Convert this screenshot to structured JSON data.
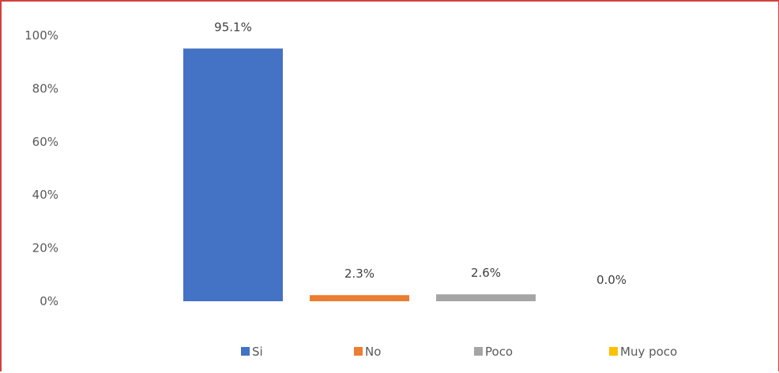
{
  "chart_data": {
    "type": "bar",
    "categories": [
      "Si",
      "No",
      "Poco",
      "Muy poco"
    ],
    "values": [
      95.1,
      2.3,
      2.6,
      0.0
    ],
    "data_labels": [
      "95.1%",
      "2.3%",
      "2.6%",
      "0.0%"
    ],
    "colors": [
      "#4472c4",
      "#ed7d31",
      "#a5a5a5",
      "#ffc000"
    ],
    "ylim": [
      0,
      100
    ],
    "yticks": [
      0,
      20,
      40,
      60,
      80,
      100
    ],
    "ytick_labels": [
      "0%",
      "20%",
      "40%",
      "60%",
      "80%",
      "100%"
    ],
    "legend": {
      "position": "bottom",
      "entries": [
        "Si",
        "No",
        "Poco",
        "Muy poco"
      ]
    },
    "grid": false,
    "title": "",
    "xlabel": "",
    "ylabel": ""
  }
}
